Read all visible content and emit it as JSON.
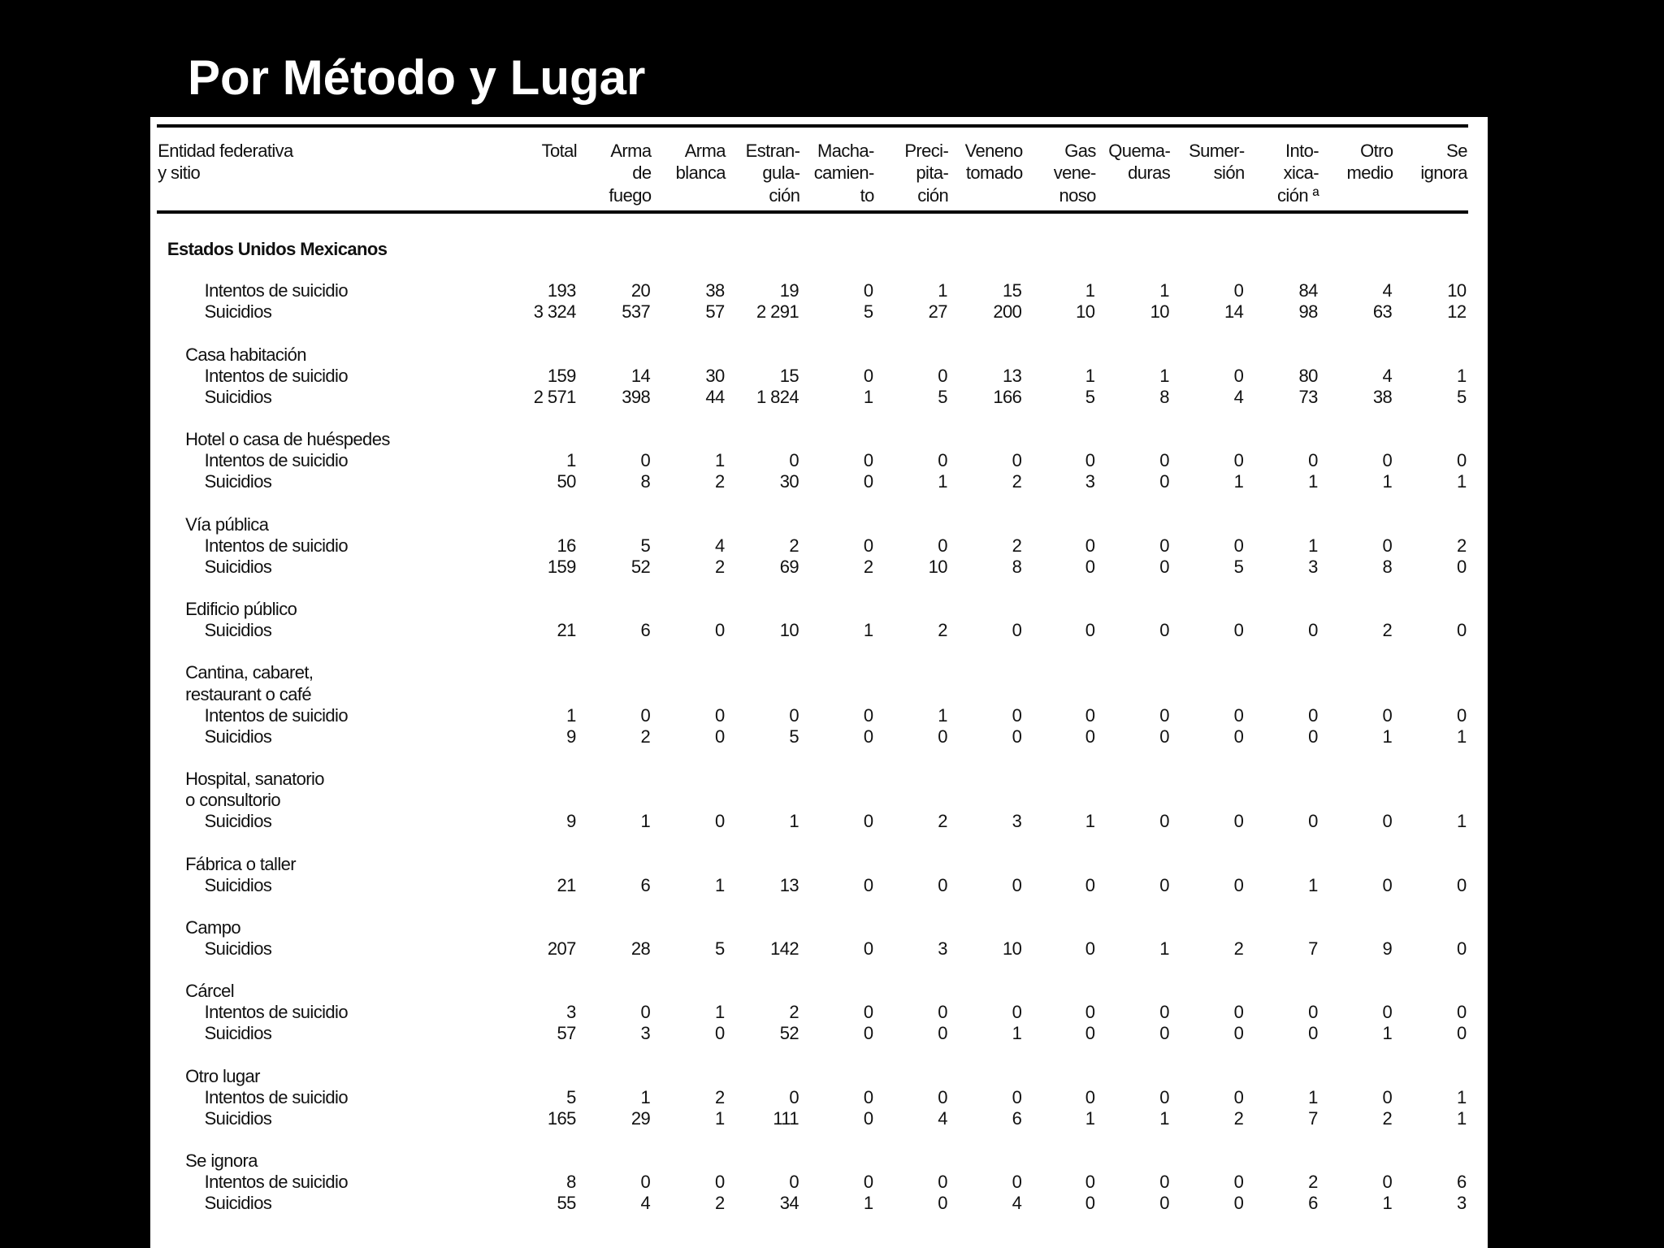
{
  "title": "Por Método y Lugar",
  "table": {
    "header": [
      [
        "Entidad federativa",
        "y sitio"
      ],
      [
        "Total"
      ],
      [
        "Arma",
        "de",
        "fuego"
      ],
      [
        "Arma",
        "blanca"
      ],
      [
        "Estran-",
        "gula-",
        "ción"
      ],
      [
        "Macha-",
        "camien-",
        "to"
      ],
      [
        "Preci-",
        "pita-",
        "ción"
      ],
      [
        "Veneno",
        "tomado"
      ],
      [
        "Gas",
        "vene-",
        "noso"
      ],
      [
        "Quema-",
        "duras"
      ],
      [
        "Sumer-",
        "sión"
      ],
      [
        "Into-",
        "xica-",
        "ción ª"
      ],
      [
        "Otro",
        "medio"
      ],
      [
        "Se",
        "ignora"
      ]
    ],
    "sections": [
      {
        "label": [
          "Estados Unidos Mexicanos"
        ],
        "rows": [
          {
            "label": "Intentos de suicidio",
            "cells": [
              "193",
              "20",
              "38",
              "19",
              "0",
              "1",
              "15",
              "1",
              "1",
              "0",
              "84",
              "4",
              "10"
            ]
          },
          {
            "label": "Suicidios",
            "cells": [
              "3 324",
              "537",
              "57",
              "2 291",
              "5",
              "27",
              "200",
              "10",
              "10",
              "14",
              "98",
              "63",
              "12"
            ]
          }
        ]
      },
      {
        "label": [
          "Casa habitación"
        ],
        "rows": [
          {
            "label": "Intentos de suicidio",
            "cells": [
              "159",
              "14",
              "30",
              "15",
              "0",
              "0",
              "13",
              "1",
              "1",
              "0",
              "80",
              "4",
              "1"
            ]
          },
          {
            "label": "Suicidios",
            "cells": [
              "2 571",
              "398",
              "44",
              "1 824",
              "1",
              "5",
              "166",
              "5",
              "8",
              "4",
              "73",
              "38",
              "5"
            ]
          }
        ]
      },
      {
        "label": [
          "Hotel o casa de huéspedes"
        ],
        "rows": [
          {
            "label": "Intentos de suicidio",
            "cells": [
              "1",
              "0",
              "1",
              "0",
              "0",
              "0",
              "0",
              "0",
              "0",
              "0",
              "0",
              "0",
              "0"
            ]
          },
          {
            "label": "Suicidios",
            "cells": [
              "50",
              "8",
              "2",
              "30",
              "0",
              "1",
              "2",
              "3",
              "0",
              "1",
              "1",
              "1",
              "1"
            ]
          }
        ]
      },
      {
        "label": [
          "Vía pública"
        ],
        "rows": [
          {
            "label": "Intentos de suicidio",
            "cells": [
              "16",
              "5",
              "4",
              "2",
              "0",
              "0",
              "2",
              "0",
              "0",
              "0",
              "1",
              "0",
              "2"
            ]
          },
          {
            "label": "Suicidios",
            "cells": [
              "159",
              "52",
              "2",
              "69",
              "2",
              "10",
              "8",
              "0",
              "0",
              "5",
              "3",
              "8",
              "0"
            ]
          }
        ]
      },
      {
        "label": [
          "Edificio público"
        ],
        "rows": [
          {
            "label": "Suicidios",
            "cells": [
              "21",
              "6",
              "0",
              "10",
              "1",
              "2",
              "0",
              "0",
              "0",
              "0",
              "0",
              "2",
              "0"
            ]
          }
        ]
      },
      {
        "label": [
          "Cantina, cabaret,",
          "restaurant o café"
        ],
        "rows": [
          {
            "label": "Intentos de suicidio",
            "cells": [
              "1",
              "0",
              "0",
              "0",
              "0",
              "1",
              "0",
              "0",
              "0",
              "0",
              "0",
              "0",
              "0"
            ]
          },
          {
            "label": "Suicidios",
            "cells": [
              "9",
              "2",
              "0",
              "5",
              "0",
              "0",
              "0",
              "0",
              "0",
              "0",
              "0",
              "1",
              "1"
            ]
          }
        ]
      },
      {
        "label": [
          "Hospital, sanatorio",
          "o consultorio"
        ],
        "rows": [
          {
            "label": "Suicidios",
            "cells": [
              "9",
              "1",
              "0",
              "1",
              "0",
              "2",
              "3",
              "1",
              "0",
              "0",
              "0",
              "0",
              "1"
            ]
          }
        ]
      },
      {
        "label": [
          "Fábrica o taller"
        ],
        "rows": [
          {
            "label": "Suicidios",
            "cells": [
              "21",
              "6",
              "1",
              "13",
              "0",
              "0",
              "0",
              "0",
              "0",
              "0",
              "1",
              "0",
              "0"
            ]
          }
        ]
      },
      {
        "label": [
          "Campo"
        ],
        "rows": [
          {
            "label": "Suicidios",
            "cells": [
              "207",
              "28",
              "5",
              "142",
              "0",
              "3",
              "10",
              "0",
              "1",
              "2",
              "7",
              "9",
              "0"
            ]
          }
        ]
      },
      {
        "label": [
          "Cárcel"
        ],
        "rows": [
          {
            "label": "Intentos de suicidio",
            "cells": [
              "3",
              "0",
              "1",
              "2",
              "0",
              "0",
              "0",
              "0",
              "0",
              "0",
              "0",
              "0",
              "0"
            ]
          },
          {
            "label": "Suicidios",
            "cells": [
              "57",
              "3",
              "0",
              "52",
              "0",
              "0",
              "1",
              "0",
              "0",
              "0",
              "0",
              "1",
              "0"
            ]
          }
        ]
      },
      {
        "label": [
          "Otro lugar"
        ],
        "rows": [
          {
            "label": "Intentos de suicidio",
            "cells": [
              "5",
              "1",
              "2",
              "0",
              "0",
              "0",
              "0",
              "0",
              "0",
              "0",
              "1",
              "0",
              "1"
            ]
          },
          {
            "label": "Suicidios",
            "cells": [
              "165",
              "29",
              "1",
              "111",
              "0",
              "4",
              "6",
              "1",
              "1",
              "2",
              "7",
              "2",
              "1"
            ]
          }
        ]
      },
      {
        "label": [
          "Se ignora"
        ],
        "rows": [
          {
            "label": "Intentos de suicidio",
            "cells": [
              "8",
              "0",
              "0",
              "0",
              "0",
              "0",
              "0",
              "0",
              "0",
              "0",
              "2",
              "0",
              "6"
            ]
          },
          {
            "label": "Suicidios",
            "cells": [
              "55",
              "4",
              "2",
              "34",
              "1",
              "0",
              "4",
              "0",
              "0",
              "0",
              "6",
              "1",
              "3"
            ]
          }
        ]
      }
    ]
  }
}
